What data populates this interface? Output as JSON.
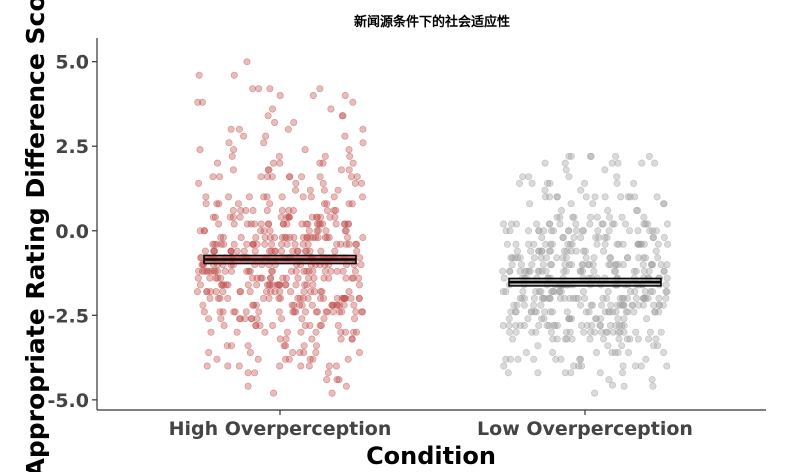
{
  "chart_data": {
    "type": "scatter",
    "title": "新闻源条件下的社会适应性",
    "xlabel": "Condition",
    "ylabel": "Appropriate Rating Difference Sco",
    "categories": [
      "High Overperception",
      "Low Overperception"
    ],
    "ylim": [
      -5.3,
      5.7
    ],
    "yticks": [
      5.0,
      2.5,
      0.0,
      -2.5,
      -5.0
    ],
    "ytick_labels": [
      "5.0",
      "2.5",
      "0.0",
      "-2.5",
      "-5.0"
    ],
    "grid": false,
    "legend": "none",
    "series": [
      {
        "category": "High Overperception",
        "color": "#c0504d",
        "point_count": 500,
        "y_range": [
          -4.8,
          5.2
        ],
        "mean": -0.85,
        "se_band": [
          -0.97,
          -0.73
        ]
      },
      {
        "category": "Low Overperception",
        "color": "#9e9e9e",
        "point_count": 480,
        "y_range": [
          -4.8,
          2.4
        ],
        "mean": -1.52,
        "se_band": [
          -1.63,
          -1.41
        ]
      }
    ]
  }
}
